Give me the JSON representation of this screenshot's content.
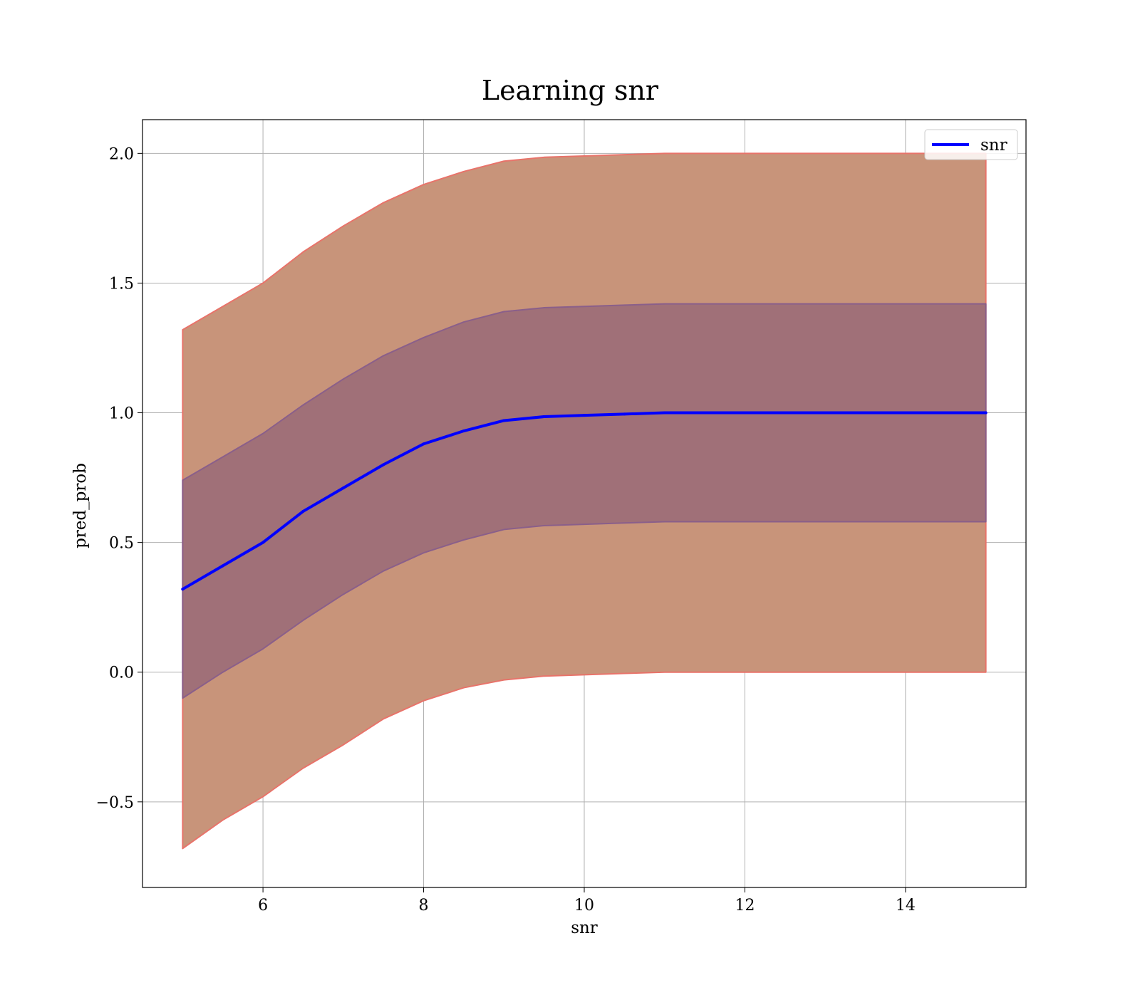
{
  "chart_data": {
    "type": "line",
    "title": "Learning snr",
    "xlabel": "snr",
    "ylabel": "pred_prob",
    "xlim": [
      4.5,
      15.5
    ],
    "ylim": [
      -0.83,
      2.13
    ],
    "grid": true,
    "legend": {
      "position": "top-right",
      "entries": [
        "snr"
      ]
    },
    "x_ticks": [
      6,
      8,
      10,
      12,
      14
    ],
    "x_tick_labels": [
      "6",
      "8",
      "10",
      "12",
      "14"
    ],
    "y_ticks": [
      -0.5,
      0.0,
      0.5,
      1.0,
      1.5,
      2.0
    ],
    "y_tick_labels": [
      "−0.5",
      "0.0",
      "0.5",
      "1.0",
      "1.5",
      "2.0"
    ],
    "colors": {
      "line": "#0000ff",
      "outer_band_fill": "#c8947a",
      "outer_band_edge": "#e8736a",
      "inner_band_fill": "#a07078",
      "inner_band_edge": "#8a5f8a",
      "grid": "#b0b0b0"
    },
    "series": [
      {
        "name": "snr",
        "x": [
          5.0,
          5.5,
          6.0,
          6.5,
          7.0,
          7.5,
          8.0,
          8.5,
          9.0,
          9.5,
          10.0,
          10.5,
          11.0,
          12.0,
          13.0,
          14.0,
          15.0
        ],
        "y": [
          0.32,
          0.41,
          0.5,
          0.62,
          0.71,
          0.8,
          0.88,
          0.93,
          0.97,
          0.985,
          0.99,
          0.995,
          1.0,
          1.0,
          1.0,
          1.0,
          1.0
        ]
      }
    ],
    "bands": [
      {
        "level": "outer",
        "x": [
          5.0,
          5.5,
          6.0,
          6.5,
          7.0,
          7.5,
          8.0,
          8.5,
          9.0,
          9.5,
          10.0,
          10.5,
          11.0,
          12.0,
          13.0,
          14.0,
          15.0
        ],
        "lower": [
          -0.68,
          -0.57,
          -0.48,
          -0.37,
          -0.28,
          -0.18,
          -0.11,
          -0.06,
          -0.03,
          -0.015,
          -0.01,
          -0.005,
          0.0,
          0.0,
          0.0,
          0.0,
          0.0
        ],
        "upper": [
          1.32,
          1.41,
          1.5,
          1.62,
          1.72,
          1.81,
          1.88,
          1.93,
          1.97,
          1.985,
          1.99,
          1.995,
          2.0,
          2.0,
          2.0,
          2.0,
          2.0
        ]
      },
      {
        "level": "inner",
        "x": [
          5.0,
          5.5,
          6.0,
          6.5,
          7.0,
          7.5,
          8.0,
          8.5,
          9.0,
          9.5,
          10.0,
          10.5,
          11.0,
          12.0,
          13.0,
          14.0,
          15.0
        ],
        "lower": [
          -0.1,
          0.0,
          0.09,
          0.2,
          0.3,
          0.39,
          0.46,
          0.51,
          0.55,
          0.565,
          0.57,
          0.575,
          0.58,
          0.58,
          0.58,
          0.58,
          0.58
        ],
        "upper": [
          0.74,
          0.83,
          0.92,
          1.03,
          1.13,
          1.22,
          1.29,
          1.35,
          1.39,
          1.405,
          1.41,
          1.415,
          1.42,
          1.42,
          1.42,
          1.42,
          1.42
        ]
      }
    ]
  }
}
